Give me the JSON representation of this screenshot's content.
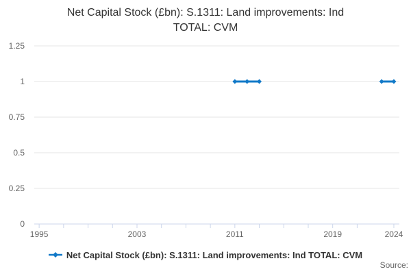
{
  "title": {
    "line1": "Net Capital Stock (£bn): S.1311: Land improvements: Ind",
    "line2": "TOTAL: CVM"
  },
  "legend": {
    "label": "Net Capital Stock (£bn): S.1311: Land improvements: Ind TOTAL: CVM"
  },
  "source": {
    "label": "Source:"
  },
  "colors": {
    "series": "#1179c8",
    "grid": "#e6e6e6",
    "axis": "#ccd6eb",
    "title_text": "#333333",
    "axis_text": "#666666"
  },
  "chart_data": {
    "type": "line",
    "title": "Net Capital Stock (£bn): S.1311: Land improvements: Ind TOTAL: CVM",
    "xlabel": "",
    "ylabel": "",
    "grid": "horizontal",
    "legend_position": "bottom",
    "series": [
      {
        "name": "Net Capital Stock (£bn): S.1311: Land improvements: Ind TOTAL: CVM",
        "color": "#1179c8",
        "marker": "diamond",
        "points": [
          [
            2011,
            1
          ],
          [
            2012,
            1
          ],
          [
            2013,
            1
          ],
          null,
          [
            2023,
            1
          ],
          [
            2024,
            1
          ]
        ]
      }
    ],
    "x_axis": {
      "min": 1994.6,
      "max": 2024.45,
      "tick_years": [
        1995,
        1997,
        1999,
        2001,
        2003,
        2005,
        2007,
        2009,
        2011,
        2013,
        2015,
        2017,
        2019,
        2021,
        2024
      ],
      "label_years": [
        1995,
        2003,
        2011,
        2019,
        2024
      ]
    },
    "y_axis": {
      "min": 0,
      "max": 1.25,
      "ticks": [
        0,
        0.25,
        0.5,
        0.75,
        1,
        1.25
      ],
      "tick_labels": [
        "0",
        "0.25",
        "0.5",
        "0.75",
        "1",
        "1.25"
      ]
    }
  }
}
